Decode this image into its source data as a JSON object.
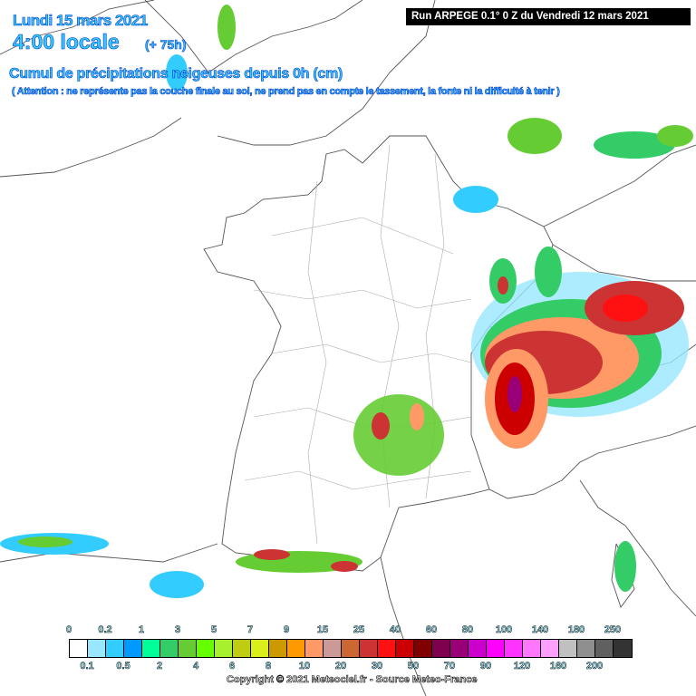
{
  "header": {
    "date": "Lundi 15 mars 2021",
    "time": "4:00 locale",
    "lead": "(+ 75h)",
    "title": "Cumul de précipitations neigeuses depuis 0h (cm)",
    "note": "( Attention : ne représente pas la couche finale au sol, ne prend pas en compte le tassement, la fonte ni la difficulté à tenir )",
    "run": "Run ARPEGE 0.1° 0 Z du Vendredi 12 mars 2021"
  },
  "legend": {
    "colors": [
      "#ffffff",
      "#99e6ff",
      "#33ccff",
      "#0099ff",
      "#00ff99",
      "#33cc66",
      "#66cc33",
      "#66ff00",
      "#a6f02e",
      "#bfcc11",
      "#d9ee1a",
      "#cc9900",
      "#ff9900",
      "#ff9966",
      "#cc9999",
      "#cc6633",
      "#cc3333",
      "#ff1111",
      "#cc0000",
      "#800000",
      "#800050",
      "#990077",
      "#cc00cc",
      "#ff00ff",
      "#ff33ff",
      "#ff77ff",
      "#ffa0ff",
      "#c0c0c0",
      "#8f8f8f",
      "#606060",
      "#333333"
    ],
    "top_labels": [
      "0",
      "0.2",
      "1",
      "3",
      "5",
      "7",
      "9",
      "15",
      "25",
      "40",
      "60",
      "80",
      "100",
      "140",
      "180",
      "250"
    ],
    "bottom_labels": [
      "0.1",
      "0.5",
      "2",
      "4",
      "6",
      "8",
      "10",
      "20",
      "30",
      "50",
      "70",
      "90",
      "120",
      "160",
      "200"
    ],
    "unit": "cm"
  },
  "footer": {
    "copyright": "Copyright © 2021 Meteociel.fr - Source Meteo-France"
  }
}
